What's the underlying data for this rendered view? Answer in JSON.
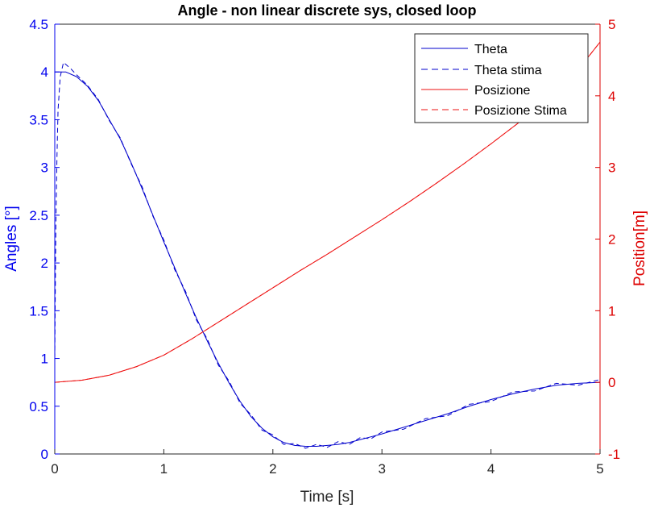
{
  "chart_data": {
    "type": "line",
    "title": "Angle - non linear discrete sys, closed loop",
    "xlabel": "Time [s]",
    "ylabel_left": "Angles [°]",
    "ylabel_right": "Position[m]",
    "xlim": [
      0,
      5
    ],
    "ylim_left": [
      0,
      4.5
    ],
    "ylim_right": [
      -1,
      5
    ],
    "xticks": [
      "0",
      "1",
      "2",
      "3",
      "4",
      "5"
    ],
    "yticks_left": [
      "0",
      "0.5",
      "1",
      "1.5",
      "2",
      "2.5",
      "3",
      "3.5",
      "4",
      "4.5"
    ],
    "yticks_right": [
      "-1",
      "0",
      "1",
      "2",
      "3",
      "4",
      "5"
    ],
    "grid": false,
    "legend_position": "top-right",
    "colors": {
      "left_axis": "#0000ee",
      "right_axis": "#dd0000",
      "theta": "#0000cc",
      "posizione": "#ee1111"
    },
    "series": [
      {
        "name": "Theta",
        "axis": "left",
        "style": "solid",
        "x": [
          0,
          0.1,
          0.2,
          0.3,
          0.4,
          0.5,
          0.6,
          0.7,
          0.8,
          0.9,
          1.0,
          1.1,
          1.2,
          1.3,
          1.4,
          1.5,
          1.6,
          1.7,
          1.8,
          1.9,
          2.0,
          2.1,
          2.2,
          2.3,
          2.4,
          2.5,
          2.6,
          2.7,
          2.8,
          2.9,
          3.0,
          3.2,
          3.4,
          3.6,
          3.8,
          4.0,
          4.2,
          4.4,
          4.6,
          4.8,
          5.0
        ],
        "y": [
          4.0,
          4.0,
          3.95,
          3.85,
          3.7,
          3.5,
          3.3,
          3.05,
          2.78,
          2.5,
          2.22,
          1.95,
          1.68,
          1.42,
          1.18,
          0.95,
          0.74,
          0.55,
          0.39,
          0.27,
          0.18,
          0.12,
          0.09,
          0.08,
          0.08,
          0.09,
          0.1,
          0.12,
          0.15,
          0.18,
          0.21,
          0.28,
          0.35,
          0.42,
          0.5,
          0.57,
          0.63,
          0.68,
          0.72,
          0.74,
          0.75
        ]
      },
      {
        "name": "Theta stima",
        "axis": "left",
        "style": "dashed",
        "x": [
          0,
          0.01,
          0.02,
          0.03,
          0.05,
          0.08,
          0.1,
          0.15,
          0.2,
          0.3,
          0.4,
          0.5,
          0.6,
          0.7,
          0.8,
          0.9,
          1.0,
          1.1,
          1.2,
          1.3,
          1.4,
          1.5,
          1.6,
          1.7,
          1.8,
          1.9,
          2.0,
          2.1,
          2.2,
          2.3,
          2.4,
          2.5,
          2.6,
          2.7,
          2.8,
          2.9,
          3.0,
          3.2,
          3.4,
          3.6,
          3.8,
          4.0,
          4.2,
          4.4,
          4.6,
          4.8,
          5.0
        ],
        "y": [
          1.0,
          2.4,
          3.1,
          3.6,
          3.95,
          4.1,
          4.08,
          4.03,
          3.97,
          3.86,
          3.71,
          3.49,
          3.31,
          3.04,
          2.8,
          2.49,
          2.24,
          1.93,
          1.7,
          1.4,
          1.2,
          0.93,
          0.76,
          0.53,
          0.41,
          0.25,
          0.2,
          0.1,
          0.11,
          0.06,
          0.1,
          0.07,
          0.13,
          0.1,
          0.17,
          0.16,
          0.23,
          0.26,
          0.37,
          0.4,
          0.52,
          0.55,
          0.65,
          0.66,
          0.74,
          0.72,
          0.78
        ]
      },
      {
        "name": "Posizione",
        "axis": "right",
        "style": "solid",
        "x": [
          0,
          0.25,
          0.5,
          0.75,
          1.0,
          1.25,
          1.5,
          1.75,
          2.0,
          2.25,
          2.5,
          2.75,
          3.0,
          3.25,
          3.5,
          3.75,
          4.0,
          4.25,
          4.5,
          4.75,
          5.0
        ],
        "y": [
          0.0,
          0.03,
          0.1,
          0.22,
          0.38,
          0.6,
          0.84,
          1.08,
          1.32,
          1.56,
          1.79,
          2.03,
          2.27,
          2.52,
          2.78,
          3.05,
          3.33,
          3.62,
          3.93,
          4.27,
          4.75
        ]
      },
      {
        "name": "Posizione Stima",
        "axis": "right",
        "style": "dashed",
        "x": [
          0,
          0.25,
          0.5,
          0.75,
          1.0,
          1.25,
          1.5,
          1.75,
          2.0,
          2.25,
          2.5,
          2.75,
          3.0,
          3.25,
          3.5,
          3.75,
          4.0,
          4.25,
          4.5,
          4.75,
          5.0
        ],
        "y": [
          0.0,
          0.03,
          0.1,
          0.22,
          0.38,
          0.6,
          0.84,
          1.08,
          1.32,
          1.56,
          1.79,
          2.03,
          2.27,
          2.52,
          2.78,
          3.05,
          3.33,
          3.62,
          3.93,
          4.27,
          4.75
        ]
      }
    ]
  }
}
